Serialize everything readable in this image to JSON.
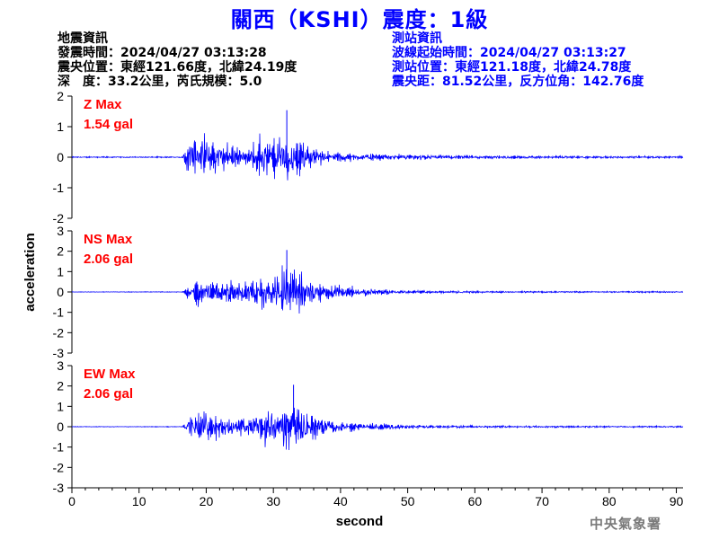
{
  "title": "關西（KSHI）震度：1級",
  "quake_info": {
    "heading": "地震資訊",
    "origin_time_label": "發震時間：",
    "origin_time": "2024/04/27 03:13:28",
    "epicenter_label": "震央位置：",
    "epicenter": "東經121.66度，北緯24.19度",
    "depth_label": "深　度：",
    "depth": "33.2公里",
    "magnitude_label": "，芮氏規模：",
    "magnitude": "5.0"
  },
  "station_info": {
    "heading": "測站資訊",
    "wave_start_label": "波線起始時間：",
    "wave_start": "2024/04/27 03:13:27",
    "location_label": "測站位置：",
    "location": "東經121.18度，北緯24.78度",
    "distance_label": "震央距：",
    "distance": "81.52公里",
    "azimuth_label": "，反方位角：",
    "azimuth": "142.76度"
  },
  "credit": "中央氣象署",
  "chart_data": {
    "type": "line",
    "xlabel": "second",
    "ylabel": "acceleration",
    "xlim": [
      0,
      91
    ],
    "x_ticks": [
      0,
      10,
      20,
      30,
      40,
      50,
      60,
      70,
      80,
      90
    ],
    "line_color": "#0000ff",
    "label_color": "#ff0000",
    "grid": false,
    "series": [
      {
        "name": "Z Max",
        "max_label": "1.54 gal",
        "max": 1.54,
        "ylim": [
          -2,
          2
        ],
        "y_ticks": [
          -2,
          -1,
          0,
          1,
          2
        ],
        "envelope": [
          [
            0,
            0.03
          ],
          [
            16.5,
            0.03
          ],
          [
            17,
            1.0
          ],
          [
            18,
            1.3
          ],
          [
            20,
            1.05
          ],
          [
            22,
            0.95
          ],
          [
            24,
            0.6
          ],
          [
            26,
            0.35
          ],
          [
            28,
            0.9
          ],
          [
            30,
            1.0
          ],
          [
            32,
            1.54
          ],
          [
            34,
            0.9
          ],
          [
            36,
            0.45
          ],
          [
            40,
            0.25
          ],
          [
            45,
            0.17
          ],
          [
            50,
            0.13
          ],
          [
            55,
            0.1
          ],
          [
            60,
            0.08
          ],
          [
            70,
            0.07
          ],
          [
            80,
            0.06
          ],
          [
            91,
            0.06
          ]
        ]
      },
      {
        "name": "NS Max",
        "max_label": "2.06 gal",
        "max": 2.06,
        "ylim": [
          -3,
          3
        ],
        "y_ticks": [
          -3,
          -2,
          -1,
          0,
          1,
          2,
          3
        ],
        "envelope": [
          [
            0,
            0.02
          ],
          [
            16.5,
            0.02
          ],
          [
            17,
            0.45
          ],
          [
            19,
            1.1
          ],
          [
            21,
            0.8
          ],
          [
            23,
            0.7
          ],
          [
            26,
            0.8
          ],
          [
            28,
            1.3
          ],
          [
            30,
            1.4
          ],
          [
            32,
            2.06
          ],
          [
            34,
            1.5
          ],
          [
            35,
            1.1
          ],
          [
            37,
            0.6
          ],
          [
            40,
            0.45
          ],
          [
            45,
            0.25
          ],
          [
            50,
            0.15
          ],
          [
            55,
            0.1
          ],
          [
            60,
            0.08
          ],
          [
            70,
            0.06
          ],
          [
            80,
            0.05
          ],
          [
            91,
            0.05
          ]
        ]
      },
      {
        "name": "EW Max",
        "max_label": "2.06 gal",
        "max": 2.06,
        "ylim": [
          -3,
          3
        ],
        "y_ticks": [
          -3,
          -2,
          -1,
          0,
          1,
          2,
          3
        ],
        "envelope": [
          [
            0,
            0.02
          ],
          [
            16.5,
            0.02
          ],
          [
            17,
            0.6
          ],
          [
            19,
            1.0
          ],
          [
            20,
            1.25
          ],
          [
            22,
            0.9
          ],
          [
            24,
            0.7
          ],
          [
            27,
            0.75
          ],
          [
            29,
            1.6
          ],
          [
            31,
            1.7
          ],
          [
            33,
            2.06
          ],
          [
            35,
            1.3
          ],
          [
            37,
            0.6
          ],
          [
            40,
            0.4
          ],
          [
            45,
            0.25
          ],
          [
            50,
            0.15
          ],
          [
            55,
            0.11
          ],
          [
            60,
            0.09
          ],
          [
            70,
            0.07
          ],
          [
            80,
            0.06
          ],
          [
            91,
            0.06
          ]
        ]
      }
    ]
  }
}
